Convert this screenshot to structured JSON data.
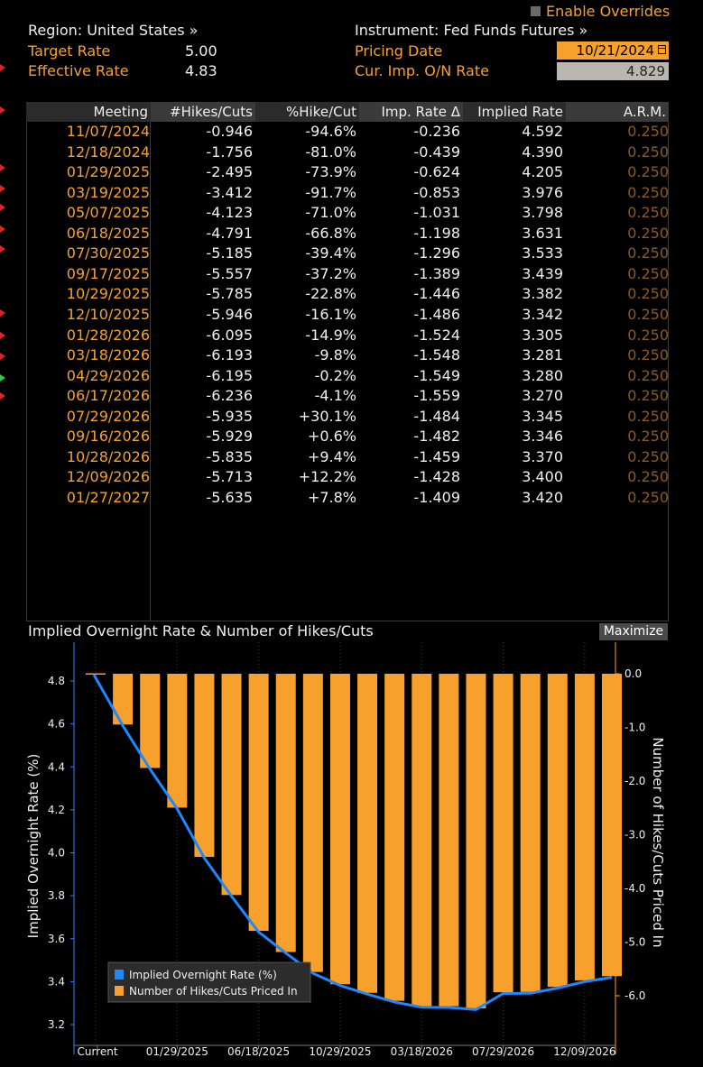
{
  "header": {
    "region_label": "Region: United States »",
    "instrument_label": "Instrument: Fed Funds Futures »",
    "enable_overrides": "Enable Overrides",
    "target_rate_label": "Target Rate",
    "target_rate_value": "5.00",
    "effective_rate_label": "Effective Rate",
    "effective_rate_value": "4.83",
    "pricing_date_label": "Pricing Date",
    "pricing_date_value": "10/21/2024",
    "cur_rate_label": "Cur. Imp. O/N Rate",
    "cur_rate_value": "4.829"
  },
  "table": {
    "columns": [
      "Meeting",
      "#Hikes/Cuts",
      "%Hike/Cut",
      "Imp. Rate Δ",
      "Implied Rate",
      "A.R.M."
    ],
    "rows": [
      [
        "11/07/2024",
        "-0.946",
        "-94.6%",
        "-0.236",
        "4.592",
        "0.250"
      ],
      [
        "12/18/2024",
        "-1.756",
        "-81.0%",
        "-0.439",
        "4.390",
        "0.250"
      ],
      [
        "01/29/2025",
        "-2.495",
        "-73.9%",
        "-0.624",
        "4.205",
        "0.250"
      ],
      [
        "03/19/2025",
        "-3.412",
        "-91.7%",
        "-0.853",
        "3.976",
        "0.250"
      ],
      [
        "05/07/2025",
        "-4.123",
        "-71.0%",
        "-1.031",
        "3.798",
        "0.250"
      ],
      [
        "06/18/2025",
        "-4.791",
        "-66.8%",
        "-1.198",
        "3.631",
        "0.250"
      ],
      [
        "07/30/2025",
        "-5.185",
        "-39.4%",
        "-1.296",
        "3.533",
        "0.250"
      ],
      [
        "09/17/2025",
        "-5.557",
        "-37.2%",
        "-1.389",
        "3.439",
        "0.250"
      ],
      [
        "10/29/2025",
        "-5.785",
        "-22.8%",
        "-1.446",
        "3.382",
        "0.250"
      ],
      [
        "12/10/2025",
        "-5.946",
        "-16.1%",
        "-1.486",
        "3.342",
        "0.250"
      ],
      [
        "01/28/2026",
        "-6.095",
        "-14.9%",
        "-1.524",
        "3.305",
        "0.250"
      ],
      [
        "03/18/2026",
        "-6.193",
        "-9.8%",
        "-1.548",
        "3.281",
        "0.250"
      ],
      [
        "04/29/2026",
        "-6.195",
        "-0.2%",
        "-1.549",
        "3.280",
        "0.250"
      ],
      [
        "06/17/2026",
        "-6.236",
        "-4.1%",
        "-1.559",
        "3.270",
        "0.250"
      ],
      [
        "07/29/2026",
        "-5.935",
        "+30.1%",
        "-1.484",
        "3.345",
        "0.250"
      ],
      [
        "09/16/2026",
        "-5.929",
        "+0.6%",
        "-1.482",
        "3.346",
        "0.250"
      ],
      [
        "10/28/2026",
        "-5.835",
        "+9.4%",
        "-1.459",
        "3.370",
        "0.250"
      ],
      [
        "12/09/2026",
        "-5.713",
        "+12.2%",
        "-1.428",
        "3.400",
        "0.250"
      ],
      [
        "01/27/2027",
        "-5.635",
        "+7.8%",
        "-1.409",
        "3.420",
        "0.250"
      ]
    ]
  },
  "chart": {
    "title": "Implied Overnight Rate & Number of Hikes/Cuts",
    "maximize_label": "Maximize"
  },
  "chart_data": {
    "type": "bar",
    "title": "Implied Overnight Rate & Number of Hikes/Cuts",
    "categories": [
      "Current",
      "11/07/2024",
      "12/18/2024",
      "01/29/2025",
      "03/19/2025",
      "05/07/2025",
      "06/18/2025",
      "07/30/2025",
      "09/17/2025",
      "10/29/2025",
      "12/10/2025",
      "01/28/2026",
      "03/18/2026",
      "04/29/2026",
      "06/17/2026",
      "07/29/2026",
      "09/16/2026",
      "10/28/2026",
      "12/09/2026",
      "01/27/2027"
    ],
    "x_tick_labels": [
      "Current",
      "01/29/2025",
      "06/18/2025",
      "10/29/2025",
      "03/18/2026",
      "07/29/2026",
      "12/09/2026"
    ],
    "series": [
      {
        "name": "Implied Overnight Rate (%)",
        "type": "line",
        "axis": "left",
        "color": "#1e88ff",
        "values": [
          4.829,
          4.592,
          4.39,
          4.205,
          3.976,
          3.798,
          3.631,
          3.533,
          3.439,
          3.382,
          3.342,
          3.305,
          3.281,
          3.28,
          3.27,
          3.345,
          3.346,
          3.37,
          3.4,
          3.42
        ]
      },
      {
        "name": "Number of Hikes/Cuts Priced In",
        "type": "bar",
        "axis": "right",
        "color": "#f7a12c",
        "values": [
          0,
          -0.946,
          -1.756,
          -2.495,
          -3.412,
          -4.123,
          -4.791,
          -5.185,
          -5.557,
          -5.785,
          -5.946,
          -6.095,
          -6.193,
          -6.195,
          -6.236,
          -5.935,
          -5.929,
          -5.835,
          -5.713,
          -5.635
        ]
      }
    ],
    "ylabel": "Implied Overnight Rate (%)",
    "ylabel_right": "Number of Hikes/Cuts Priced In",
    "ylim": [
      3.15,
      4.85
    ],
    "y_ticks": [
      "3.2",
      "3.4",
      "3.6",
      "3.8",
      "4.0",
      "4.2",
      "4.4",
      "4.6",
      "4.8"
    ],
    "y2lim": [
      -6.9,
      0.1
    ],
    "y2_ticks": [
      "0.0",
      "-1.0",
      "-2.0",
      "-3.0",
      "-4.0",
      "-5.0",
      "-6.0"
    ],
    "legend_position": "bottom-left",
    "grid": true
  },
  "colors": {
    "orange": "#f7a12c",
    "blue": "#1e88ff",
    "arm_text": "#8a5a22"
  }
}
